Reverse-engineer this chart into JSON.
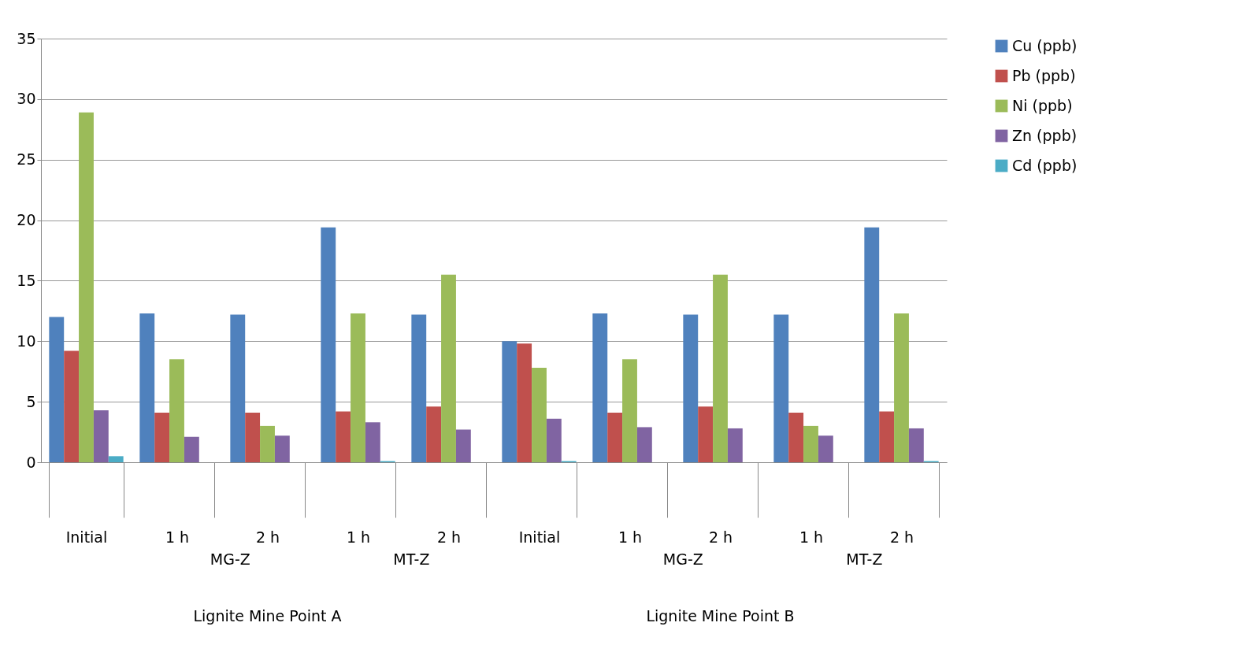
{
  "chart_data": {
    "type": "bar",
    "categories": [
      "Initial",
      "1 h",
      "2 h",
      "1 h",
      "2 h",
      "Initial",
      "1 h",
      "2 h",
      "1 h",
      "2 h"
    ],
    "series": [
      {
        "name": "Cu (ppb)",
        "color": "#4f81bd",
        "values": [
          12.0,
          12.3,
          12.2,
          19.4,
          12.2,
          10.0,
          12.3,
          12.2,
          12.2,
          19.4
        ]
      },
      {
        "name": "Pb (ppb)",
        "color": "#c0504d",
        "values": [
          9.2,
          4.1,
          4.1,
          4.2,
          4.6,
          9.8,
          4.1,
          4.6,
          4.1,
          4.2
        ]
      },
      {
        "name": "Ni (ppb)",
        "color": "#9bbb59",
        "values": [
          28.9,
          8.5,
          3.0,
          12.3,
          15.5,
          7.8,
          8.5,
          15.5,
          3.0,
          12.3
        ]
      },
      {
        "name": "Zn (ppb)",
        "color": "#8064a2",
        "values": [
          4.3,
          2.1,
          2.2,
          3.3,
          2.7,
          3.6,
          2.9,
          2.8,
          2.2,
          2.8
        ]
      },
      {
        "name": "Cd (ppb)",
        "color": "#4bacc6",
        "values": [
          0.5,
          0,
          0,
          0.1,
          0,
          0.1,
          0,
          0,
          0,
          0.1
        ]
      }
    ],
    "annotations": [
      "MG-Z",
      "MT-Z",
      "MG-Z",
      "MT-Z",
      "Lignite Mine Point A",
      "Lignite Mine Point B"
    ],
    "ylim": [
      0,
      35
    ],
    "yticks": [
      0,
      5,
      10,
      15,
      20,
      25,
      30,
      35
    ],
    "grid": "y",
    "legend": "right"
  }
}
